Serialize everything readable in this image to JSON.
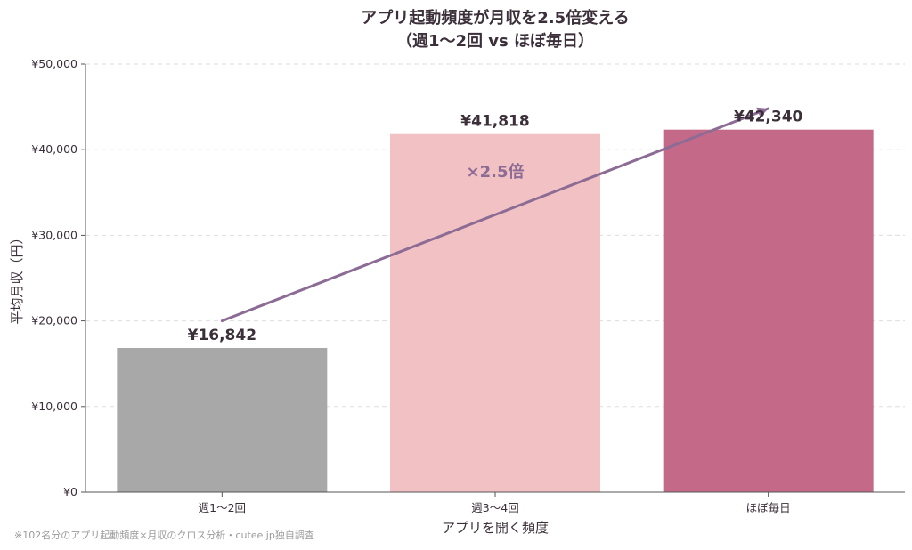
{
  "chart_data": {
    "type": "bar",
    "title_line1": "アプリ起動頻度が月収を2.5倍変える",
    "title_line2": "（週1〜2回 vs ほぼ毎日）",
    "xlabel": "アプリを開く頻度",
    "ylabel": "平均月収（円）",
    "ylim": [
      0,
      50000
    ],
    "y_ticks": [
      0,
      10000,
      20000,
      30000,
      40000,
      50000
    ],
    "y_tick_labels": [
      "¥0",
      "¥10,000",
      "¥20,000",
      "¥30,000",
      "¥40,000",
      "¥50,000"
    ],
    "grid": true,
    "categories": [
      "週1〜2回",
      "週3〜4回",
      "ほぼ毎日"
    ],
    "values": [
      16842,
      41818,
      42340
    ],
    "value_labels": [
      "¥16,842",
      "¥41,818",
      "¥42,340"
    ],
    "bar_colors": [
      "#a8a8a8",
      "#f2c1c3",
      "#c46a88"
    ],
    "trend_arrow": {
      "from": {
        "category": "週1〜2回",
        "value": 20000
      },
      "to": {
        "category": "ほぼ毎日",
        "value": 44800
      },
      "color": "#8c6b95"
    },
    "annotation": {
      "text": "×2.5倍",
      "category": "週3〜4回",
      "value": 36800,
      "color": "#8c6b95"
    },
    "footnote": "※102名分のアプリ起動頻度×月収のクロス分析・cutee.jp独自調査"
  }
}
